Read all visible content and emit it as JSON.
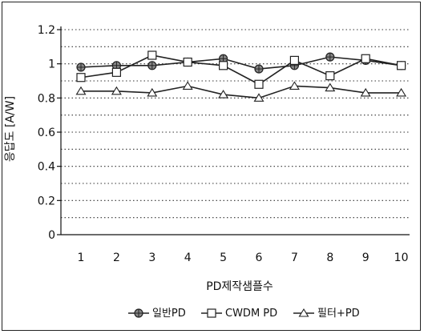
{
  "chart_data": {
    "type": "line",
    "title": "",
    "xlabel": "PD제작샘플수",
    "ylabel": "응답도 [A/W]",
    "categories": [
      "1",
      "2",
      "3",
      "4",
      "5",
      "6",
      "7",
      "8",
      "9",
      "10"
    ],
    "ylim": [
      0,
      1.2
    ],
    "y_ticks": [
      "0",
      "0.2",
      "0.4",
      "0.6",
      "0.8",
      "1",
      "1.2"
    ],
    "grid": "horizontal dotted",
    "legend_position": "bottom",
    "series": [
      {
        "name": "일반PD",
        "marker": "circle-cross",
        "color": "#222222",
        "values": [
          0.98,
          0.99,
          0.99,
          1.01,
          1.03,
          0.97,
          0.99,
          1.04,
          1.02,
          0.99
        ]
      },
      {
        "name": "CWDM PD",
        "marker": "square",
        "color": "#222222",
        "values": [
          0.92,
          0.95,
          1.05,
          1.01,
          0.99,
          0.88,
          1.02,
          0.93,
          1.03,
          0.99
        ]
      },
      {
        "name": "필터+PD",
        "marker": "triangle",
        "color": "#222222",
        "values": [
          0.84,
          0.84,
          0.83,
          0.87,
          0.82,
          0.8,
          0.87,
          0.86,
          0.83,
          0.83
        ]
      }
    ]
  }
}
